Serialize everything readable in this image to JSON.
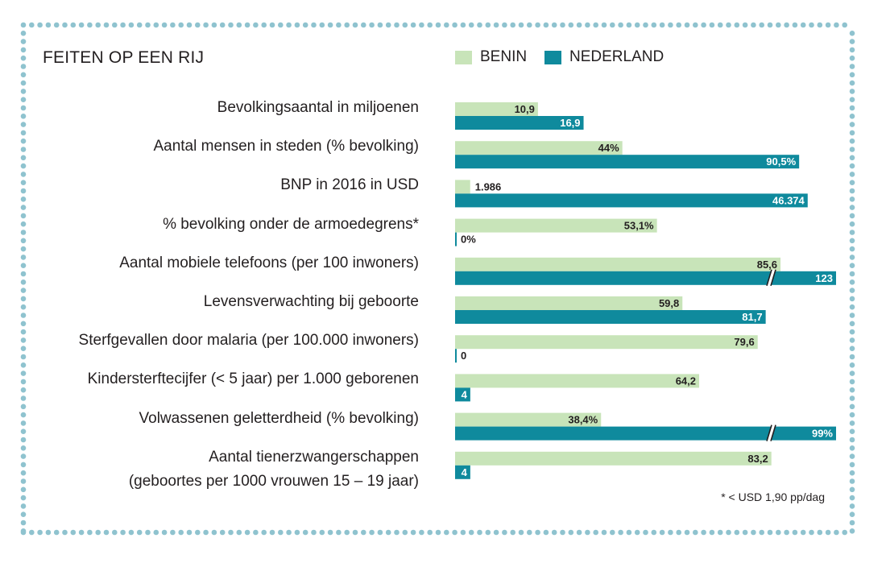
{
  "header": {
    "title": "FEITEN OP EEN RIJ",
    "footnote": "* < USD 1,90 pp/dag"
  },
  "colors": {
    "benin": "#c8e4b9",
    "nederland": "#0f8a9d",
    "frame_dots": "#8fc3cf",
    "text": "#231f20"
  },
  "chart_data": {
    "type": "bar",
    "orientation": "horizontal",
    "title": "FEITEN OP EEN RIJ",
    "legend_position": "top-right",
    "series": [
      {
        "name": "BENIN",
        "values": [
          10.9,
          44,
          1986,
          53.1,
          85.6,
          59.8,
          79.6,
          64.2,
          38.4,
          83.2
        ],
        "labels": [
          "10,9",
          "44%",
          "1.986",
          "53,1%",
          "85,6",
          "59,8",
          "79,6",
          "64,2",
          "38,4%",
          "83,2"
        ]
      },
      {
        "name": "NEDERLAND",
        "values": [
          16.9,
          90.5,
          46374,
          0,
          123,
          81.7,
          0,
          4,
          99,
          4
        ],
        "labels": [
          "16,9",
          "90,5%",
          "46.374",
          "0%",
          "123",
          "81,7",
          "0",
          "4",
          "99%",
          "4"
        ],
        "truncated": [
          false,
          false,
          false,
          false,
          true,
          false,
          false,
          false,
          true,
          false
        ]
      }
    ],
    "categories": [
      [
        "Bevolkingsaantal in miljoenen"
      ],
      [
        "Aantal mensen in steden (% bevolking)"
      ],
      [
        "BNP in 2016 in USD"
      ],
      [
        "% bevolking onder de armoedegrens*"
      ],
      [
        "Aantal mobiele telefoons (per 100 inwoners)"
      ],
      [
        "Levensverwachting bij geboorte"
      ],
      [
        "Sterfgevallen door malaria (per 100.000 inwoners)"
      ],
      [
        "Kindersterftecijfer (< 5 jaar) per 1.000 geborenen"
      ],
      [
        "Volwassenen geletterdheid (% bevolking)"
      ],
      [
        "Aantal tienerzwangerschappen",
        "(geboortes per 1000 vrouwen 15 – 19 jaar)"
      ]
    ],
    "scale_units": [
      50,
      100,
      50000,
      100,
      100,
      100,
      100,
      100,
      100,
      100
    ],
    "xlabel": "",
    "ylabel": ""
  }
}
